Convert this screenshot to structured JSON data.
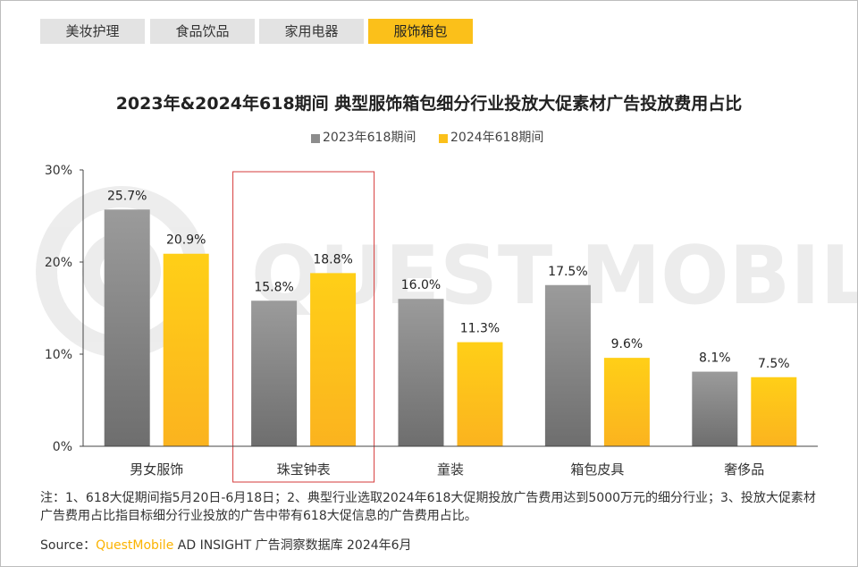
{
  "tabs": [
    {
      "label": "美妆护理"
    },
    {
      "label": "食品饮品"
    },
    {
      "label": "家用电器"
    },
    {
      "label": "服饰箱包",
      "active": true
    }
  ],
  "chart_data": {
    "type": "bar",
    "title": "2023年&2024年618期间 典型服饰箱包细分行业投放大促素材广告投放费用占比",
    "categories": [
      "男女服饰",
      "珠宝钟表",
      "童装",
      "箱包皮具",
      "奢侈品"
    ],
    "series": [
      {
        "name": "2023年618期间",
        "values": [
          25.7,
          15.8,
          16.0,
          17.5,
          8.1
        ],
        "labels": [
          "25.7%",
          "15.8%",
          "16.0%",
          "17.5%",
          "8.1%"
        ],
        "color": "#8c8c8c"
      },
      {
        "name": "2024年618期间",
        "values": [
          20.9,
          18.8,
          11.3,
          9.6,
          7.5
        ],
        "labels": [
          "20.9%",
          "18.8%",
          "11.3%",
          "9.6%",
          "7.5%"
        ],
        "color": "#fbc01a"
      }
    ],
    "yticks": [
      "0%",
      "10%",
      "20%",
      "30%"
    ],
    "ylim": [
      0,
      30
    ],
    "legend_position": "top-center",
    "highlight_category": "珠宝钟表",
    "highlight_color": "#d63b3b",
    "grid": false
  },
  "watermark": "QUEST MOBILE",
  "notes": "注：1、618大促期间指5月20日-6月18日；2、典型行业选取2024年618大促期投放广告费用达到5000万元的细分行业；3、投放大促素材广告费用占比指目标细分行业投放的广告中带有618大促信息的广告费用占比。",
  "source": {
    "prefix": "Source：",
    "brand": "QuestMobile",
    "rest": " AD INSIGHT 广告洞察数据库 2024年6月"
  }
}
